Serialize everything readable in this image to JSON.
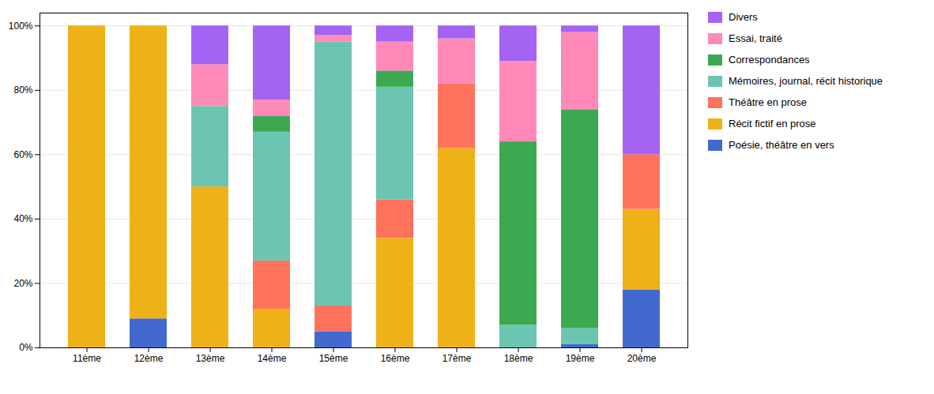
{
  "chart_data": {
    "type": "bar",
    "stacked": true,
    "categories": [
      "11ème",
      "12ème",
      "13ème",
      "14ème",
      "15ème",
      "16ème",
      "17ème",
      "18ème",
      "19ème",
      "20ème"
    ],
    "series": [
      {
        "name": "Poésie, théâtre en vers",
        "values": [
          0,
          9,
          0,
          0,
          5,
          0,
          0,
          0,
          1,
          18
        ]
      },
      {
        "name": "Récit fictif en prose",
        "values": [
          100,
          91,
          50,
          12,
          0,
          34,
          62,
          0,
          0,
          25
        ]
      },
      {
        "name": "Théâtre en prose",
        "values": [
          0,
          0,
          0,
          15,
          8,
          12,
          20,
          0,
          0,
          17
        ]
      },
      {
        "name": "Mémoires, journal, récit historique",
        "values": [
          0,
          0,
          25,
          40,
          82,
          35,
          0,
          7,
          5,
          0
        ]
      },
      {
        "name": "Correspondances",
        "values": [
          0,
          0,
          0,
          5,
          0,
          5,
          0,
          57,
          68,
          0
        ]
      },
      {
        "name": "Essai, traité",
        "values": [
          0,
          0,
          13,
          5,
          2,
          9,
          14,
          25,
          24,
          0
        ]
      },
      {
        "name": "Divers",
        "values": [
          0,
          0,
          12,
          23,
          3,
          5,
          4,
          11,
          2,
          40
        ]
      }
    ],
    "ylim": [
      0,
      104
    ],
    "yticks": [
      {
        "value": 0,
        "label": "0%"
      },
      {
        "value": 20,
        "label": "20%"
      },
      {
        "value": 40,
        "label": "40%"
      },
      {
        "value": 60,
        "label": "60%"
      },
      {
        "value": 80,
        "label": "80%"
      },
      {
        "value": 100,
        "label": "100%"
      }
    ],
    "grid": true,
    "legend": "right"
  }
}
